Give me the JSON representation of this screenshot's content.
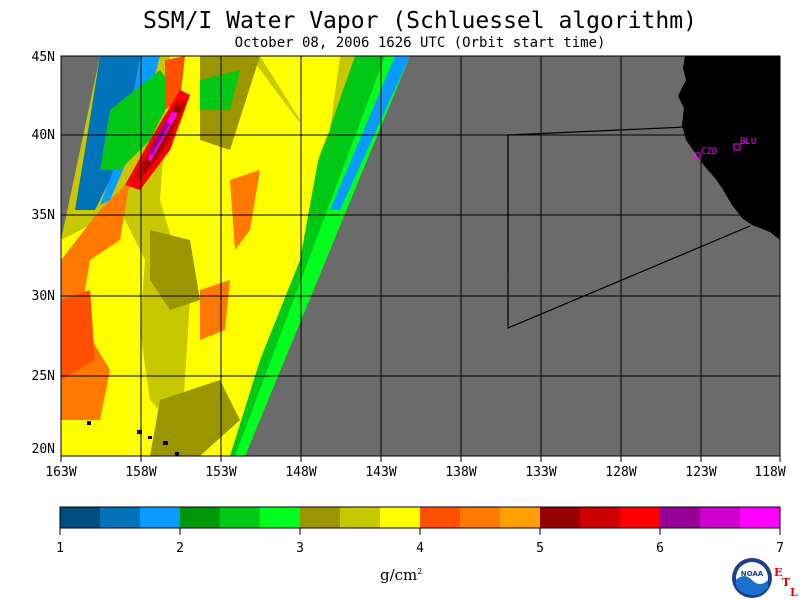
{
  "header": {
    "title": "SSM/I Water Vapor (Schluessel algorithm)",
    "subtitle": "October 08, 2006  1626 UTC  (Orbit start time)"
  },
  "map": {
    "lat_labels": [
      "45N",
      "40N",
      "35N",
      "30N",
      "25N",
      "20N"
    ],
    "lon_labels": [
      "163W",
      "158W",
      "153W",
      "148W",
      "143W",
      "138W",
      "133W",
      "128W",
      "123W",
      "118W"
    ],
    "sites": [
      {
        "label": "CZD"
      },
      {
        "label": "BLU"
      }
    ],
    "colors": {
      "no_data": "#6b6b6b",
      "land": "#000000",
      "grid": "#000000",
      "site": "#ff00ff"
    }
  },
  "colorbar": {
    "units": "g/cm",
    "units_exp": "2",
    "ticks": [
      "1",
      "2",
      "3",
      "4",
      "5",
      "6",
      "7"
    ],
    "colors": [
      "#004e80",
      "#0073bb",
      "#0a9bff",
      "#00960a",
      "#00c814",
      "#00ff1e",
      "#9b9600",
      "#c8c800",
      "#ffff00",
      "#ff5000",
      "#ff7800",
      "#ffa000",
      "#960000",
      "#cd0000",
      "#ff0000",
      "#960096",
      "#cd00cd",
      "#ff00ff"
    ]
  },
  "logo": {
    "text": "NOAA",
    "etl": [
      "E",
      "T",
      "L"
    ]
  }
}
